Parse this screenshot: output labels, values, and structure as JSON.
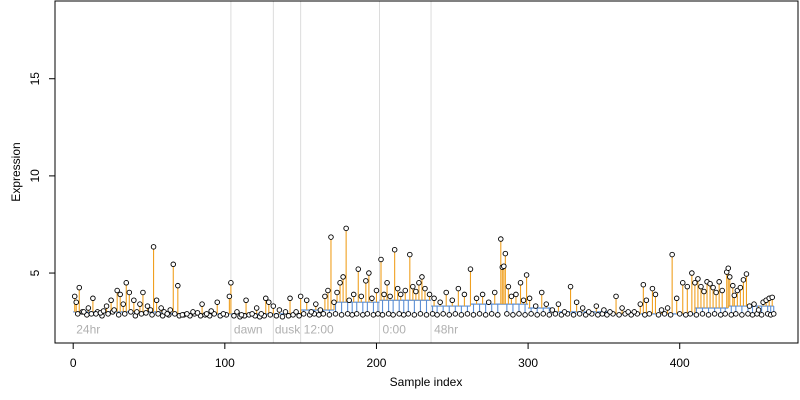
{
  "chart_data": {
    "type": "scatter",
    "title": "",
    "xlabel": "Sample index",
    "ylabel": "Expression",
    "xlim": [
      -12,
      478
    ],
    "ylim": [
      1.4,
      19.0
    ],
    "xticks": [
      0,
      100,
      200,
      300,
      400
    ],
    "yticks": [
      5,
      10,
      15
    ],
    "grid": false,
    "segment_dividers": [
      104,
      132,
      150,
      202,
      236
    ],
    "segment_labels": [
      {
        "text": "24hr",
        "x": 2
      },
      {
        "text": "dawn",
        "x": 106
      },
      {
        "text": "dusk",
        "x": 133
      },
      {
        "text": "12:00",
        "x": 152
      },
      {
        "text": "0:00",
        "x": 204
      },
      {
        "text": "48hr",
        "x": 238
      }
    ],
    "baseline_segments": [
      {
        "x0": 0,
        "x1": 60,
        "y": 3.0
      },
      {
        "x0": 60,
        "x1": 104,
        "y": 2.9
      },
      {
        "x0": 104,
        "x1": 150,
        "y": 2.9
      },
      {
        "x0": 150,
        "x1": 172,
        "y": 3.1
      },
      {
        "x0": 172,
        "x1": 202,
        "y": 3.5
      },
      {
        "x0": 202,
        "x1": 236,
        "y": 3.6
      },
      {
        "x0": 236,
        "x1": 262,
        "y": 3.3
      },
      {
        "x0": 262,
        "x1": 300,
        "y": 3.4
      },
      {
        "x0": 300,
        "x1": 315,
        "y": 3.2
      },
      {
        "x0": 315,
        "x1": 355,
        "y": 3.0
      },
      {
        "x0": 355,
        "x1": 410,
        "y": 2.9
      },
      {
        "x0": 410,
        "x1": 432,
        "y": 3.2
      },
      {
        "x0": 432,
        "x1": 462,
        "y": 3.3
      }
    ],
    "points": [
      [
        1,
        3.8
      ],
      [
        2,
        3.5
      ],
      [
        4,
        4.25
      ],
      [
        7,
        3.0
      ],
      [
        10,
        3.2
      ],
      [
        13,
        3.7
      ],
      [
        15,
        2.9
      ],
      [
        18,
        2.95
      ],
      [
        20,
        3.05
      ],
      [
        22,
        3.3
      ],
      [
        25,
        3.6
      ],
      [
        27,
        3.1
      ],
      [
        29,
        4.1
      ],
      [
        31,
        3.9
      ],
      [
        33,
        3.4
      ],
      [
        35,
        4.5
      ],
      [
        37,
        4.0
      ],
      [
        40,
        3.6
      ],
      [
        42,
        3.0
      ],
      [
        44,
        3.4
      ],
      [
        46,
        4.0
      ],
      [
        49,
        3.3
      ],
      [
        51,
        3.1
      ],
      [
        53,
        6.35
      ],
      [
        55,
        3.6
      ],
      [
        58,
        3.2
      ],
      [
        60,
        3.0
      ],
      [
        62,
        2.9
      ],
      [
        64,
        3.1
      ],
      [
        66,
        5.45
      ],
      [
        69,
        4.35
      ],
      [
        72,
        2.85
      ],
      [
        75,
        2.9
      ],
      [
        79,
        3.0
      ],
      [
        82,
        2.95
      ],
      [
        85,
        3.4
      ],
      [
        88,
        2.9
      ],
      [
        91,
        3.05
      ],
      [
        95,
        3.5
      ],
      [
        99,
        2.9
      ],
      [
        103,
        3.8
      ],
      [
        104,
        4.5
      ],
      [
        108,
        3.0
      ],
      [
        111,
        2.85
      ],
      [
        114,
        3.6
      ],
      [
        118,
        2.9
      ],
      [
        121,
        3.2
      ],
      [
        124,
        2.9
      ],
      [
        127,
        3.7
      ],
      [
        129,
        3.5
      ],
      [
        132,
        3.3
      ],
      [
        136,
        3.1
      ],
      [
        140,
        3.0
      ],
      [
        143,
        3.7
      ],
      [
        147,
        3.0
      ],
      [
        150,
        3.8
      ],
      [
        154,
        3.6
      ],
      [
        157,
        3.0
      ],
      [
        160,
        3.4
      ],
      [
        163,
        3.1
      ],
      [
        166,
        3.8
      ],
      [
        168,
        4.1
      ],
      [
        170,
        6.85
      ],
      [
        172,
        3.5
      ],
      [
        174,
        4.0
      ],
      [
        176,
        4.5
      ],
      [
        178,
        4.8
      ],
      [
        180,
        7.3
      ],
      [
        182,
        3.6
      ],
      [
        185,
        3.9
      ],
      [
        188,
        5.2
      ],
      [
        190,
        3.8
      ],
      [
        193,
        4.6
      ],
      [
        195,
        5.0
      ],
      [
        197,
        3.7
      ],
      [
        200,
        4.1
      ],
      [
        203,
        5.7
      ],
      [
        205,
        3.9
      ],
      [
        207,
        4.5
      ],
      [
        209,
        3.8
      ],
      [
        212,
        6.2
      ],
      [
        214,
        4.2
      ],
      [
        216,
        3.9
      ],
      [
        219,
        4.1
      ],
      [
        222,
        5.95
      ],
      [
        224,
        4.3
      ],
      [
        226,
        4.05
      ],
      [
        228,
        4.5
      ],
      [
        230,
        4.8
      ],
      [
        232,
        4.2
      ],
      [
        235,
        3.9
      ],
      [
        238,
        3.7
      ],
      [
        242,
        3.5
      ],
      [
        246,
        4.0
      ],
      [
        250,
        3.6
      ],
      [
        254,
        4.2
      ],
      [
        258,
        3.9
      ],
      [
        262,
        5.2
      ],
      [
        266,
        3.7
      ],
      [
        270,
        3.9
      ],
      [
        274,
        3.5
      ],
      [
        278,
        4.0
      ],
      [
        282,
        6.75
      ],
      [
        283,
        5.3
      ],
      [
        284,
        5.35
      ],
      [
        285,
        6.0
      ],
      [
        287,
        4.3
      ],
      [
        289,
        3.8
      ],
      [
        292,
        3.9
      ],
      [
        295,
        4.5
      ],
      [
        297,
        3.6
      ],
      [
        299,
        4.9
      ],
      [
        301,
        3.7
      ],
      [
        305,
        3.3
      ],
      [
        309,
        4.0
      ],
      [
        312,
        3.4
      ],
      [
        316,
        3.1
      ],
      [
        320,
        3.4
      ],
      [
        324,
        3.0
      ],
      [
        328,
        4.3
      ],
      [
        332,
        3.5
      ],
      [
        336,
        3.2
      ],
      [
        340,
        3.0
      ],
      [
        345,
        3.3
      ],
      [
        350,
        3.1
      ],
      [
        354,
        3.0
      ],
      [
        358,
        3.8
      ],
      [
        362,
        3.2
      ],
      [
        366,
        3.0
      ],
      [
        370,
        3.0
      ],
      [
        374,
        3.4
      ],
      [
        376,
        4.4
      ],
      [
        378,
        3.6
      ],
      [
        382,
        4.2
      ],
      [
        384,
        3.9
      ],
      [
        388,
        3.1
      ],
      [
        392,
        3.2
      ],
      [
        395,
        5.95
      ],
      [
        398,
        3.7
      ],
      [
        402,
        4.5
      ],
      [
        405,
        4.3
      ],
      [
        408,
        5.0
      ],
      [
        410,
        4.5
      ],
      [
        412,
        4.7
      ],
      [
        414,
        4.3
      ],
      [
        416,
        4.05
      ],
      [
        418,
        4.55
      ],
      [
        420,
        4.45
      ],
      [
        422,
        4.25
      ],
      [
        424,
        4.0
      ],
      [
        426,
        4.55
      ],
      [
        428,
        4.1
      ],
      [
        431,
        5.05
      ],
      [
        432,
        5.25
      ],
      [
        433,
        4.8
      ],
      [
        435,
        4.35
      ],
      [
        436,
        3.85
      ],
      [
        438,
        4.1
      ],
      [
        440,
        4.25
      ],
      [
        442,
        4.65
      ],
      [
        444,
        4.95
      ],
      [
        446,
        3.3
      ],
      [
        449,
        3.4
      ],
      [
        452,
        3.1
      ],
      [
        455,
        3.5
      ],
      [
        457,
        3.6
      ],
      [
        459,
        3.7
      ],
      [
        461,
        3.75
      ]
    ],
    "low_points": [
      [
        3,
        2.9
      ],
      [
        6,
        3.0
      ],
      [
        9,
        2.85
      ],
      [
        12,
        2.9
      ],
      [
        16,
        3.0
      ],
      [
        19,
        2.8
      ],
      [
        23,
        2.9
      ],
      [
        26,
        3.0
      ],
      [
        30,
        2.85
      ],
      [
        34,
        2.9
      ],
      [
        38,
        3.0
      ],
      [
        41,
        2.8
      ],
      [
        45,
        2.9
      ],
      [
        48,
        2.95
      ],
      [
        52,
        2.85
      ],
      [
        56,
        2.9
      ],
      [
        59,
        2.8
      ],
      [
        63,
        2.85
      ],
      [
        67,
        2.9
      ],
      [
        70,
        2.8
      ],
      [
        73,
        2.85
      ],
      [
        77,
        2.8
      ],
      [
        80,
        2.9
      ],
      [
        84,
        2.8
      ],
      [
        87,
        2.85
      ],
      [
        90,
        2.8
      ],
      [
        93,
        2.9
      ],
      [
        97,
        2.8
      ],
      [
        101,
        2.85
      ],
      [
        106,
        2.8
      ],
      [
        110,
        2.75
      ],
      [
        113,
        2.8
      ],
      [
        116,
        2.85
      ],
      [
        120,
        2.8
      ],
      [
        123,
        2.75
      ],
      [
        126,
        2.8
      ],
      [
        130,
        2.85
      ],
      [
        134,
        2.8
      ],
      [
        138,
        2.75
      ],
      [
        142,
        2.8
      ],
      [
        145,
        2.85
      ],
      [
        149,
        2.8
      ],
      [
        152,
        2.9
      ],
      [
        156,
        2.85
      ],
      [
        159,
        2.9
      ],
      [
        162,
        2.85
      ],
      [
        165,
        2.9
      ],
      [
        169,
        2.85
      ],
      [
        173,
        2.9
      ],
      [
        177,
        2.85
      ],
      [
        181,
        2.9
      ],
      [
        184,
        2.85
      ],
      [
        187,
        2.9
      ],
      [
        191,
        2.85
      ],
      [
        194,
        2.9
      ],
      [
        198,
        2.85
      ],
      [
        201,
        2.9
      ],
      [
        204,
        2.85
      ],
      [
        208,
        2.9
      ],
      [
        211,
        2.85
      ],
      [
        215,
        2.9
      ],
      [
        218,
        2.85
      ],
      [
        221,
        2.9
      ],
      [
        225,
        2.85
      ],
      [
        229,
        2.9
      ],
      [
        233,
        2.85
      ],
      [
        237,
        2.9
      ],
      [
        240,
        2.85
      ],
      [
        244,
        2.9
      ],
      [
        248,
        2.85
      ],
      [
        252,
        2.9
      ],
      [
        256,
        2.85
      ],
      [
        260,
        2.9
      ],
      [
        264,
        2.85
      ],
      [
        268,
        2.9
      ],
      [
        272,
        2.85
      ],
      [
        276,
        2.9
      ],
      [
        280,
        2.85
      ],
      [
        286,
        2.9
      ],
      [
        290,
        2.85
      ],
      [
        294,
        2.9
      ],
      [
        298,
        2.85
      ],
      [
        302,
        2.9
      ],
      [
        306,
        2.85
      ],
      [
        310,
        2.9
      ],
      [
        314,
        2.85
      ],
      [
        318,
        2.9
      ],
      [
        322,
        2.85
      ],
      [
        326,
        2.9
      ],
      [
        330,
        2.85
      ],
      [
        334,
        2.9
      ],
      [
        338,
        2.85
      ],
      [
        342,
        2.9
      ],
      [
        346,
        2.85
      ],
      [
        349,
        2.9
      ],
      [
        352,
        2.85
      ],
      [
        356,
        2.9
      ],
      [
        360,
        2.85
      ],
      [
        364,
        2.9
      ],
      [
        368,
        2.85
      ],
      [
        372,
        2.9
      ],
      [
        377,
        2.85
      ],
      [
        380,
        2.9
      ],
      [
        386,
        2.85
      ],
      [
        390,
        2.9
      ],
      [
        394,
        2.85
      ],
      [
        400,
        2.9
      ],
      [
        404,
        2.85
      ],
      [
        407,
        2.9
      ],
      [
        411,
        2.85
      ],
      [
        415,
        2.9
      ],
      [
        419,
        2.85
      ],
      [
        423,
        2.9
      ],
      [
        427,
        2.85
      ],
      [
        430,
        2.9
      ],
      [
        434,
        2.85
      ],
      [
        437,
        2.9
      ],
      [
        441,
        2.85
      ],
      [
        445,
        2.9
      ],
      [
        448,
        2.85
      ],
      [
        451,
        2.9
      ],
      [
        454,
        2.85
      ],
      [
        458,
        2.9
      ],
      [
        460,
        2.85
      ],
      [
        462,
        2.9
      ]
    ]
  }
}
